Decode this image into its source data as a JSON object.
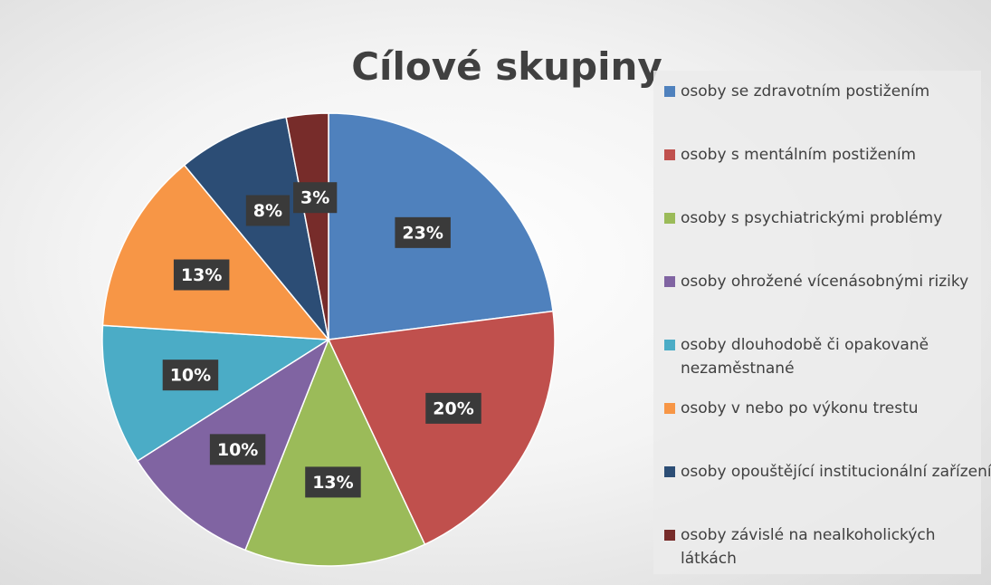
{
  "chart_data": {
    "type": "pie",
    "title": "Cílové skupiny",
    "categories": [
      "osoby se zdravotním postižením",
      "osoby s mentálním postižením",
      "osoby s psychiatrickými problémy",
      "osoby ohrožené vícenásobnými riziky",
      "osoby dlouhodobě či opakovaně nezaměstnané",
      "osoby v nebo po výkonu trestu",
      "osoby opouštějící institucionální zařízení",
      "osoby závislé na nealkoholických látkách"
    ],
    "values": [
      23,
      20,
      13,
      10,
      10,
      13,
      8,
      3
    ],
    "value_labels": [
      "23%",
      "20%",
      "13%",
      "10%",
      "10%",
      "13%",
      "8%",
      "3%"
    ],
    "colors": [
      "#4f81bd",
      "#c0504d",
      "#9bbb59",
      "#8064a2",
      "#4bacc6",
      "#f79646",
      "#2c4d75",
      "#772c2a"
    ],
    "legend": "right"
  }
}
